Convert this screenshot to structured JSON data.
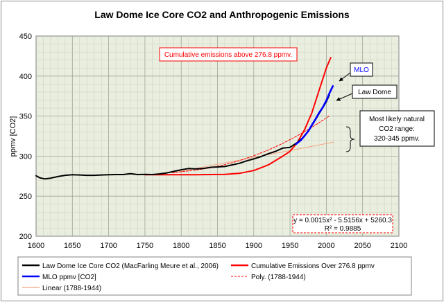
{
  "chart_data": {
    "type": "line",
    "title": "Law Dome Ice Core CO2 and Anthropogenic Emissions",
    "ylabel": "ppmv [CO2]",
    "xlabel": "",
    "xlim": [
      1600,
      2100
    ],
    "ylim": [
      200,
      450
    ],
    "x_ticks": [
      "1600",
      "1650",
      "1700",
      "1750",
      "1800",
      "1850",
      "1900",
      "1950",
      "2000",
      "2050",
      "2100"
    ],
    "y_ticks": [
      "200",
      "250",
      "300",
      "350",
      "400",
      "450"
    ],
    "grid": true,
    "background_color": "#e9eedf",
    "series": [
      {
        "name": "Law Dome Ice Core CO2 (MacFarling Meure et al., 2006)",
        "color": "#000000",
        "style": "solid",
        "points": [
          [
            1600,
            275.5
          ],
          [
            1605,
            273
          ],
          [
            1612,
            271.5
          ],
          [
            1620,
            272.5
          ],
          [
            1630,
            274.5
          ],
          [
            1640,
            276
          ],
          [
            1650,
            276.8
          ],
          [
            1660,
            276.5
          ],
          [
            1670,
            276
          ],
          [
            1680,
            276
          ],
          [
            1690,
            276.5
          ],
          [
            1700,
            276.8
          ],
          [
            1710,
            277
          ],
          [
            1720,
            277
          ],
          [
            1730,
            278
          ],
          [
            1740,
            277
          ],
          [
            1750,
            277.2
          ],
          [
            1760,
            277
          ],
          [
            1770,
            277.8
          ],
          [
            1780,
            279
          ],
          [
            1790,
            281
          ],
          [
            1800,
            283
          ],
          [
            1810,
            284.5
          ],
          [
            1820,
            284
          ],
          [
            1830,
            284.5
          ],
          [
            1840,
            286
          ],
          [
            1850,
            286.5
          ],
          [
            1860,
            287
          ],
          [
            1870,
            289
          ],
          [
            1880,
            291
          ],
          [
            1890,
            294
          ],
          [
            1900,
            296.5
          ],
          [
            1910,
            299.5
          ],
          [
            1920,
            303
          ],
          [
            1930,
            306
          ],
          [
            1940,
            310
          ],
          [
            1950,
            311
          ],
          [
            1960,
            317
          ],
          [
            1970,
            325
          ],
          [
            1980,
            338
          ],
          [
            1990,
            353
          ],
          [
            2000,
            368
          ],
          [
            2004,
            376
          ]
        ]
      },
      {
        "name": "MLO ppmv [CO2]",
        "color": "#0000ff",
        "style": "solid",
        "points": [
          [
            1958,
            315
          ],
          [
            1965,
            320
          ],
          [
            1970,
            325.5
          ],
          [
            1975,
            331
          ],
          [
            1980,
            338.7
          ],
          [
            1985,
            346
          ],
          [
            1990,
            354
          ],
          [
            1995,
            360.8
          ],
          [
            2000,
            369.5
          ],
          [
            2005,
            380
          ],
          [
            2009,
            387.5
          ]
        ]
      },
      {
        "name": "Cumulative Emissions Over 276.8 ppmv",
        "color": "#ff0000",
        "style": "solid",
        "points": [
          [
            1750,
            276.8
          ],
          [
            1780,
            276.8
          ],
          [
            1820,
            276.8
          ],
          [
            1860,
            277.2
          ],
          [
            1880,
            278.5
          ],
          [
            1900,
            282
          ],
          [
            1920,
            289
          ],
          [
            1940,
            300
          ],
          [
            1950,
            306
          ],
          [
            1960,
            317
          ],
          [
            1970,
            333
          ],
          [
            1980,
            354
          ],
          [
            1990,
            382
          ],
          [
            2000,
            410
          ],
          [
            2006,
            423
          ]
        ]
      },
      {
        "name": "Poly. (1788-1944)",
        "color": "#ff0000",
        "style": "dashed",
        "points": [
          [
            1788,
            279.2
          ],
          [
            1800,
            280.5
          ],
          [
            1820,
            282.5
          ],
          [
            1840,
            285.3
          ],
          [
            1860,
            289.3
          ],
          [
            1880,
            294.3
          ],
          [
            1900,
            300.4
          ],
          [
            1920,
            307.6
          ],
          [
            1940,
            315.9
          ],
          [
            1960,
            325.4
          ],
          [
            1980,
            336
          ],
          [
            2000,
            347.7
          ],
          [
            2005,
            350.8
          ]
        ]
      },
      {
        "name": "Linear (1788-1944)",
        "color": "#f4a582",
        "style": "solid",
        "points": [
          [
            1788,
            279
          ],
          [
            2010,
            317.5
          ]
        ]
      }
    ],
    "annotations": [
      {
        "text": "Cumulative emissions above 276.8 ppmv.",
        "color": "#ff0000"
      },
      {
        "text": "MLO",
        "color": "#0000ff"
      },
      {
        "text": "Law Dome",
        "color": "#000000"
      },
      {
        "lines": [
          "Most likely natural",
          "CO2 range:",
          "320-345 ppmv."
        ],
        "color": "#000000"
      },
      {
        "lines": [
          "y = 0.0015x² - 5.5156x + 5260.3",
          "R² = 0.9885"
        ],
        "color": "#ff0000"
      }
    ]
  }
}
